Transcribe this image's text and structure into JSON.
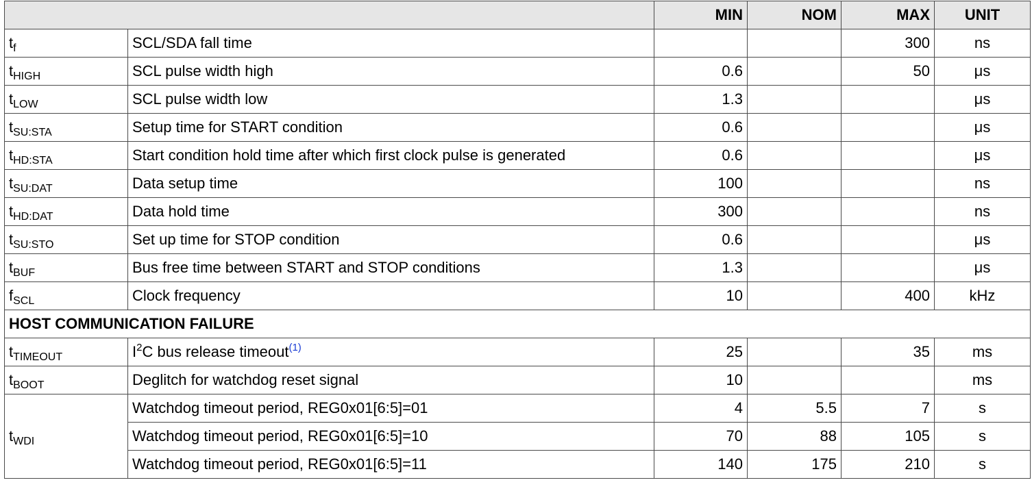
{
  "header": {
    "min": "MIN",
    "nom": "NOM",
    "max": "MAX",
    "unit": "UNIT"
  },
  "rows": [
    {
      "sym": "t",
      "sub": "f",
      "desc": "SCL/SDA fall time",
      "min": "",
      "nom": "",
      "max": "300",
      "unit": "ns"
    },
    {
      "sym": "t",
      "sub": "HIGH",
      "desc": "SCL pulse width high",
      "min": "0.6",
      "nom": "",
      "max": "50",
      "unit": "μs"
    },
    {
      "sym": "t",
      "sub": "LOW",
      "desc": "SCL pulse width low",
      "min": "1.3",
      "nom": "",
      "max": "",
      "unit": "μs"
    },
    {
      "sym": "t",
      "sub": "SU:STA",
      "desc": "Setup time for START condition",
      "min": "0.6",
      "nom": "",
      "max": "",
      "unit": "μs"
    },
    {
      "sym": "t",
      "sub": "HD:STA",
      "desc": "Start condition hold time after which first clock pulse is generated",
      "min": "0.6",
      "nom": "",
      "max": "",
      "unit": "μs"
    },
    {
      "sym": "t",
      "sub": "SU:DAT",
      "desc": "Data setup time",
      "min": "100",
      "nom": "",
      "max": "",
      "unit": "ns"
    },
    {
      "sym": "t",
      "sub": "HD:DAT",
      "desc": "Data hold time",
      "min": "300",
      "nom": "",
      "max": "",
      "unit": "ns"
    },
    {
      "sym": "t",
      "sub": "SU:STO",
      "desc": "Set up time for STOP condition",
      "min": "0.6",
      "nom": "",
      "max": "",
      "unit": "μs"
    },
    {
      "sym": "t",
      "sub": "BUF",
      "desc": "Bus free time between START and STOP conditions",
      "min": "1.3",
      "nom": "",
      "max": "",
      "unit": "μs"
    },
    {
      "sym": "f",
      "sub": "SCL",
      "desc": "Clock frequency",
      "min": "10",
      "nom": "",
      "max": "400",
      "unit": "kHz"
    }
  ],
  "section": {
    "title": "HOST COMMUNICATION FAILURE"
  },
  "timeout_row": {
    "sym": "t",
    "sub": "TIMEOUT",
    "desc_pre": "I",
    "desc_sup": "2",
    "desc_post": "C bus release timeout",
    "footnote": "(1)",
    "min": "25",
    "nom": "",
    "max": "35",
    "unit": "ms"
  },
  "boot_row": {
    "sym": "t",
    "sub": "BOOT",
    "desc": "Deglitch for watchdog reset signal",
    "min": "10",
    "nom": "",
    "max": "",
    "unit": "ms"
  },
  "wdi": {
    "sym": "t",
    "sub": "WDI",
    "rows": [
      {
        "desc": "Watchdog timeout period, REG0x01[6:5]=01",
        "min": "4",
        "nom": "5.5",
        "max": "7",
        "unit": "s"
      },
      {
        "desc": "Watchdog timeout period, REG0x01[6:5]=10",
        "min": "70",
        "nom": "88",
        "max": "105",
        "unit": "s"
      },
      {
        "desc": "Watchdog timeout period, REG0x01[6:5]=11",
        "min": "140",
        "nom": "175",
        "max": "210",
        "unit": "s"
      }
    ]
  }
}
